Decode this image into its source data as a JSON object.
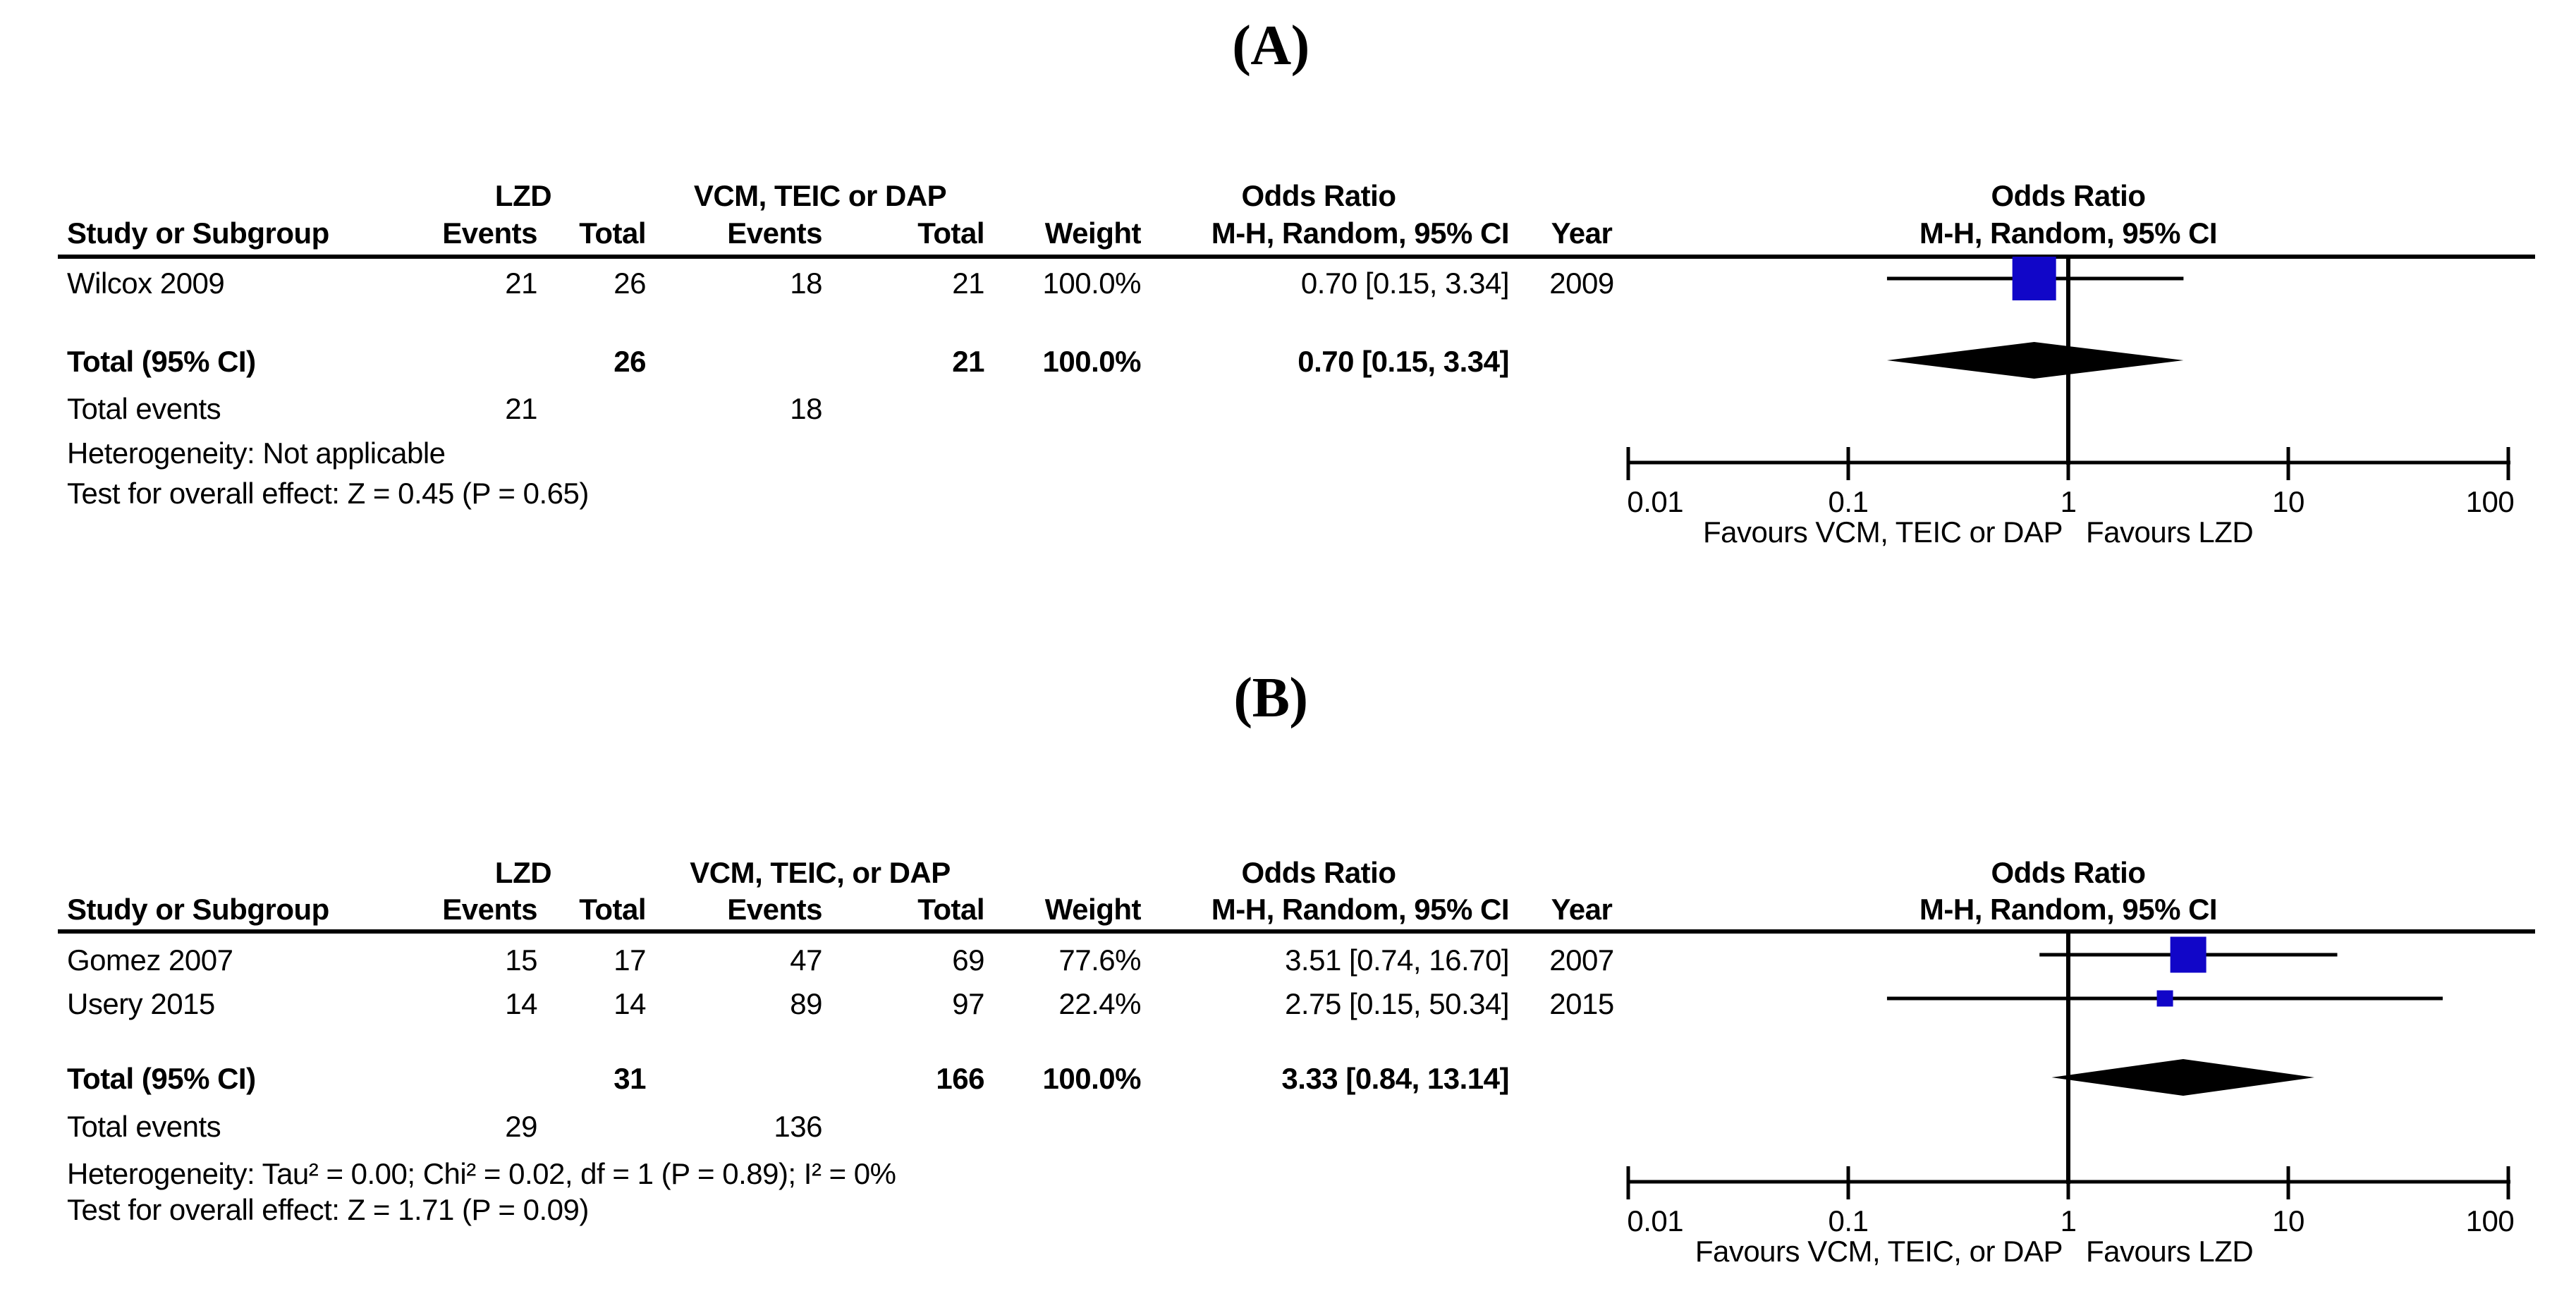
{
  "colors": {
    "forest_square": "#1106c8",
    "diamond": "#000000",
    "text": "#000000"
  },
  "panels": [
    {
      "panel_label": "(A)",
      "groups": {
        "treatment": "LZD",
        "control": "VCM, TEIC or DAP"
      },
      "or_column_header": {
        "title": "Odds Ratio",
        "subtitle": "M-H, Random, 95% CI"
      },
      "plot_header": {
        "title": "Odds Ratio",
        "subtitle": "M-H, Random, 95% CI"
      },
      "column_headers": {
        "study": "Study or Subgroup",
        "events1": "Events",
        "total1": "Total",
        "events2": "Events",
        "total2": "Total",
        "weight": "Weight",
        "year": "Year"
      },
      "studies": [
        {
          "name": "Wilcox 2009",
          "events1": "21",
          "total1": "26",
          "events2": "18",
          "total2": "21",
          "weight": "100.0%",
          "weight_pct": 100.0,
          "or_ci": "0.70 [0.15, 3.34]",
          "year": "2009",
          "or": 0.7,
          "ci_low": 0.15,
          "ci_high": 3.34
        }
      ],
      "total": {
        "label": "Total (95% CI)",
        "total1": "26",
        "total2": "21",
        "weight": "100.0%",
        "or_ci": "0.70 [0.15, 3.34]",
        "or": 0.7,
        "ci_low": 0.15,
        "ci_high": 3.34
      },
      "total_events": {
        "label": "Total events",
        "events1": "21",
        "events2": "18"
      },
      "heterogeneity": "Heterogeneity: Not applicable",
      "overall_effect": "Test for overall effect: Z = 0.45 (P = 0.65)",
      "axis_ticks": [
        "0.01",
        "0.1",
        "1",
        "10",
        "100"
      ],
      "axis_tick_values": [
        0.01,
        0.1,
        1,
        10,
        100
      ],
      "favours_left": "Favours VCM, TEIC or DAP",
      "favours_right": "Favours LZD"
    },
    {
      "panel_label": "(B)",
      "groups": {
        "treatment": "LZD",
        "control": "VCM, TEIC, or DAP"
      },
      "or_column_header": {
        "title": "Odds Ratio",
        "subtitle": "M-H, Random, 95% CI"
      },
      "plot_header": {
        "title": "Odds Ratio",
        "subtitle": "M-H, Random, 95% CI"
      },
      "column_headers": {
        "study": "Study or Subgroup",
        "events1": "Events",
        "total1": "Total",
        "events2": "Events",
        "total2": "Total",
        "weight": "Weight",
        "year": "Year"
      },
      "studies": [
        {
          "name": "Gomez 2007",
          "events1": "15",
          "total1": "17",
          "events2": "47",
          "total2": "69",
          "weight": "77.6%",
          "weight_pct": 77.6,
          "or_ci": "3.51 [0.74, 16.70]",
          "year": "2007",
          "or": 3.51,
          "ci_low": 0.74,
          "ci_high": 16.7
        },
        {
          "name": "Usery 2015",
          "events1": "14",
          "total1": "14",
          "events2": "89",
          "total2": "97",
          "weight": "22.4%",
          "weight_pct": 22.4,
          "or_ci": "2.75 [0.15, 50.34]",
          "year": "2015",
          "or": 2.75,
          "ci_low": 0.15,
          "ci_high": 50.34
        }
      ],
      "total": {
        "label": "Total (95% CI)",
        "total1": "31",
        "total2": "166",
        "weight": "100.0%",
        "or_ci": "3.33 [0.84, 13.14]",
        "or": 3.33,
        "ci_low": 0.84,
        "ci_high": 13.14
      },
      "total_events": {
        "label": "Total events",
        "events1": "29",
        "events2": "136"
      },
      "heterogeneity": "Heterogeneity: Tau² = 0.00; Chi² = 0.02, df = 1 (P = 0.89); I² = 0%",
      "overall_effect": "Test for overall effect: Z = 1.71 (P = 0.09)",
      "axis_ticks": [
        "0.01",
        "0.1",
        "1",
        "10",
        "100"
      ],
      "axis_tick_values": [
        0.01,
        0.1,
        1,
        10,
        100
      ],
      "favours_left": "Favours VCM, TEIC, or DAP",
      "favours_right": "Favours LZD"
    }
  ],
  "chart_data": [
    {
      "type": "scatter",
      "subtype": "forest_plot",
      "panel": "A",
      "title": "Odds Ratio",
      "subtitle": "M-H, Random, 95% CI",
      "x_scale": "log",
      "xlim": [
        0.01,
        100
      ],
      "x_ticks": [
        0.01,
        0.1,
        1,
        10,
        100
      ],
      "points": [
        {
          "label": "Wilcox 2009",
          "or": 0.7,
          "ci95": [
            0.15,
            3.34
          ],
          "weight_pct": 100.0,
          "year": 2009
        }
      ],
      "summary_diamond": {
        "label": "Total (95% CI)",
        "or": 0.7,
        "ci95": [
          0.15,
          3.34
        ]
      },
      "x_axis_annotations": [
        "Favours VCM, TEIC or DAP",
        "Favours LZD"
      ]
    },
    {
      "type": "scatter",
      "subtype": "forest_plot",
      "panel": "B",
      "title": "Odds Ratio",
      "subtitle": "M-H, Random, 95% CI",
      "x_scale": "log",
      "xlim": [
        0.01,
        100
      ],
      "x_ticks": [
        0.01,
        0.1,
        1,
        10,
        100
      ],
      "points": [
        {
          "label": "Gomez 2007",
          "or": 3.51,
          "ci95": [
            0.74,
            16.7
          ],
          "weight_pct": 77.6,
          "year": 2007
        },
        {
          "label": "Usery 2015",
          "or": 2.75,
          "ci95": [
            0.15,
            50.34
          ],
          "weight_pct": 22.4,
          "year": 2015
        }
      ],
      "summary_diamond": {
        "label": "Total (95% CI)",
        "or": 3.33,
        "ci95": [
          0.84,
          13.14
        ]
      },
      "x_axis_annotations": [
        "Favours VCM, TEIC, or DAP",
        "Favours LZD"
      ]
    }
  ]
}
